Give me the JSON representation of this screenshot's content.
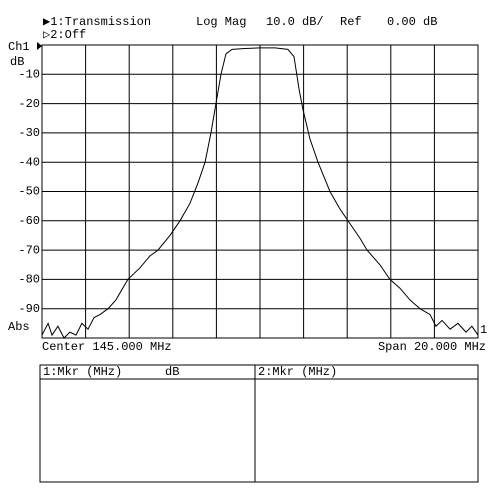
{
  "chart_data": {
    "type": "line",
    "header": {
      "trace1": "▶1:Transmission",
      "format": "Log Mag",
      "scale": "10.0 dB/",
      "ref_label": "Ref",
      "ref_value": "0.00 dB",
      "trace2": "▷2:Off"
    },
    "channel": "Ch1",
    "y_label": "dB",
    "bottom_left_label": "Abs",
    "ref_marker": "1",
    "center": "Center 145.000 MHz",
    "span": "Span 20.000 MHz",
    "xlim": [
      135,
      155
    ],
    "xticks": [
      135,
      137,
      139,
      141,
      143,
      145,
      147,
      149,
      151,
      153,
      155
    ],
    "ylim": [
      -100,
      0
    ],
    "yticks": [
      -10,
      -20,
      -30,
      -40,
      -50,
      -60,
      -70,
      -80,
      -90
    ],
    "grid": true,
    "series": [
      {
        "name": "Transmission",
        "color": "#000000",
        "x": [
          135.0,
          135.28,
          135.46,
          135.73,
          136.01,
          136.28,
          136.56,
          136.83,
          137.11,
          137.39,
          137.66,
          138.03,
          138.39,
          138.94,
          139.5,
          139.95,
          140.32,
          140.87,
          141.33,
          141.79,
          142.16,
          142.48,
          142.75,
          142.98,
          143.21,
          143.44,
          143.72,
          144.31,
          145.0,
          145.69,
          146.28,
          146.56,
          146.79,
          146.97,
          147.29,
          147.66,
          148.21,
          148.67,
          149.13,
          149.59,
          149.91,
          150.5,
          150.96,
          151.42,
          151.88,
          152.34,
          152.8,
          153.07,
          153.35,
          153.72,
          154.08,
          154.45,
          154.72,
          155.0
        ],
        "values": [
          -99,
          -95,
          -99,
          -96,
          -100,
          -98,
          -99,
          -95,
          -97,
          -93,
          -92,
          -90,
          -87,
          -80,
          -76,
          -72,
          -70,
          -65,
          -60,
          -54,
          -47,
          -40,
          -30,
          -20,
          -10,
          -3,
          -1.5,
          -1.2,
          -1,
          -1,
          -1.5,
          -4,
          -15,
          -22,
          -32,
          -40,
          -50,
          -56,
          -61,
          -66,
          -70,
          -75,
          -80,
          -83,
          -87,
          -90,
          -92,
          -96,
          -94,
          -97,
          -95,
          -98,
          -96,
          -99
        ]
      }
    ],
    "marker_table": {
      "col1": "1:Mkr (MHz)",
      "col1_unit": "dB",
      "col2": "2:Mkr (MHz)"
    }
  }
}
